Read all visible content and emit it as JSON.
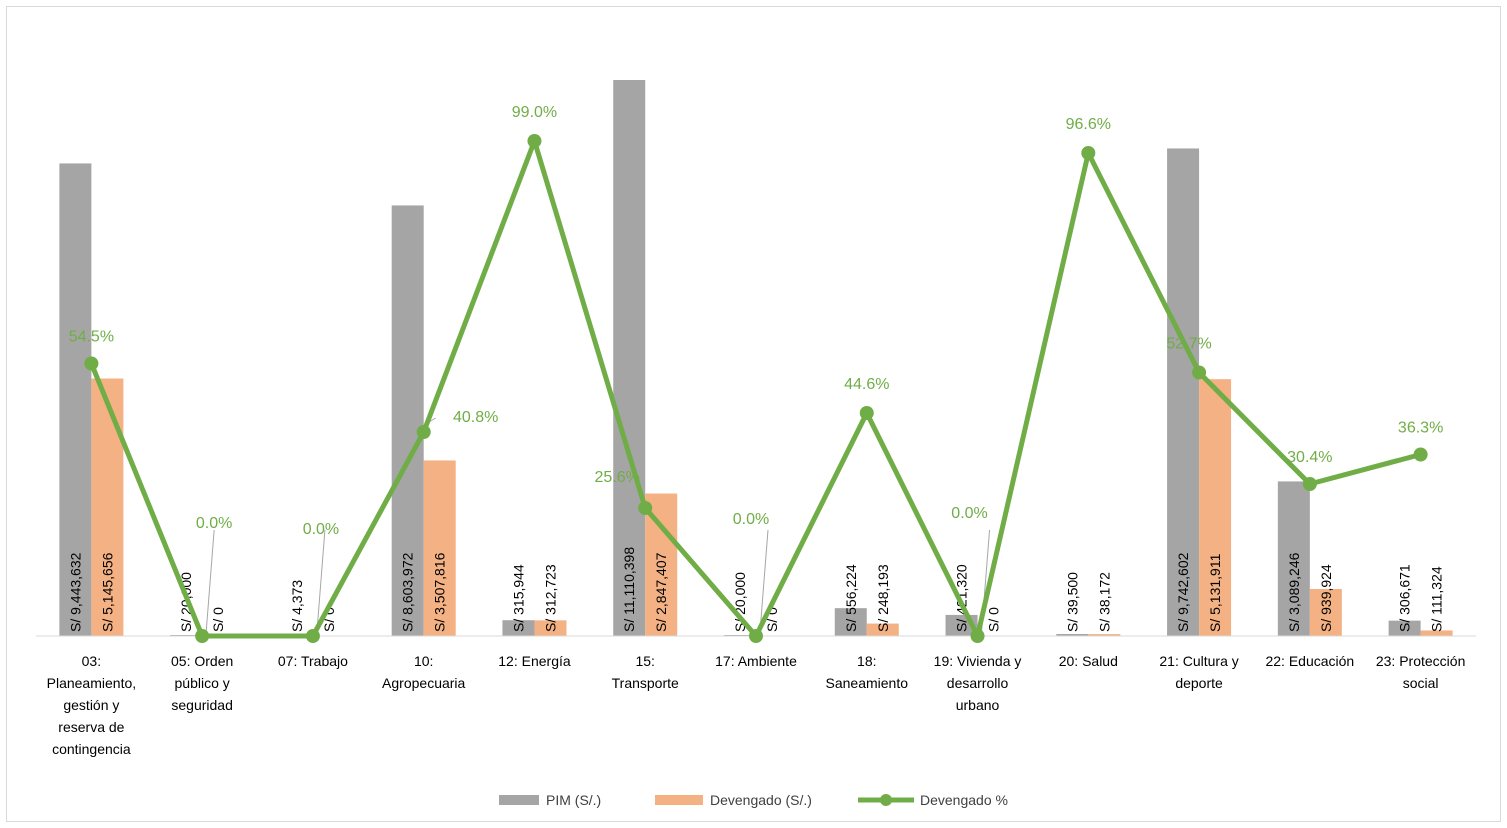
{
  "colors": {
    "pim": "#a5a5a5",
    "devengado": "#f4b183",
    "pct": "#70ad47",
    "axis": "#d9d9d9",
    "leader": "#a6a6a6"
  },
  "chart_data": {
    "type": "bar",
    "categories": [
      "03: Planeamiento, gestión y reserva de contingencia",
      "05: Orden público y seguridad",
      "07: Trabajo",
      "10: Agropecuaria",
      "12: Energía",
      "15: Transporte",
      "17: Ambiente",
      "18: Saneamiento",
      "19: Vivienda y desarrollo urbano",
      "20: Salud",
      "21: Cultura y deporte",
      "22: Educación",
      "23: Protección social"
    ],
    "category_lines": [
      [
        "03:",
        "Planeamiento,",
        "gestión y",
        "reserva de",
        "contingencia"
      ],
      [
        "05: Orden",
        "público y",
        "seguridad"
      ],
      [
        "07: Trabajo"
      ],
      [
        "10:",
        "Agropecuaria"
      ],
      [
        "12: Energía"
      ],
      [
        "15:",
        "Transporte"
      ],
      [
        "17: Ambiente"
      ],
      [
        "18:",
        "Saneamiento"
      ],
      [
        "19: Vivienda y",
        "desarrollo",
        "urbano"
      ],
      [
        "20: Salud"
      ],
      [
        "21: Cultura y",
        "deporte"
      ],
      [
        "22: Educación"
      ],
      [
        "23: Protección",
        "social"
      ]
    ],
    "series": [
      {
        "name": "PIM (S/.)",
        "values": [
          9443632,
          20000,
          4373,
          8603972,
          315944,
          11110398,
          20000,
          556224,
          421320,
          39500,
          9742602,
          3089246,
          306671
        ],
        "labels": [
          "S/ 9,443,632",
          "S/ 20,000",
          "S/ 4,373",
          "S/ 8,603,972",
          "S/ 315,944",
          "S/ 11,110,398",
          "S/ 20,000",
          "S/ 556,224",
          "S/ 421,320",
          "S/ 39,500",
          "S/ 9,742,602",
          "S/ 3,089,246",
          "S/ 306,671"
        ]
      },
      {
        "name": "Devengado (S/.)",
        "values": [
          5145656,
          0,
          0,
          3507816,
          312723,
          2847407,
          0,
          248193,
          0,
          38172,
          5131911,
          939924,
          111324
        ],
        "labels": [
          "S/ 5,145,656",
          "S/ 0",
          "S/ 0",
          "S/ 3,507,816",
          "S/ 312,723",
          "S/ 2,847,407",
          "S/ 0",
          "S/ 248,193",
          "S/ 0",
          "S/ 38,172",
          "S/ 5,131,911",
          "S/ 939,924",
          "S/ 111,324"
        ]
      },
      {
        "name": "Devengado %",
        "type": "line",
        "values": [
          54.5,
          0.0,
          0.0,
          40.8,
          99.0,
          25.6,
          0.0,
          44.6,
          0.0,
          96.6,
          52.7,
          30.4,
          36.3
        ],
        "labels": [
          "54.5%",
          "0.0%",
          "0.0%",
          "40.8%",
          "99.0%",
          "25.6%",
          "0.0%",
          "44.6%",
          "0.0%",
          "96.6%",
          "52.7%",
          "30.4%",
          "36.3%"
        ]
      }
    ],
    "ylim_bars": [
      0,
      11110398
    ],
    "ylim_pct": [
      0,
      100
    ],
    "grid": false,
    "legend_position": "bottom"
  }
}
